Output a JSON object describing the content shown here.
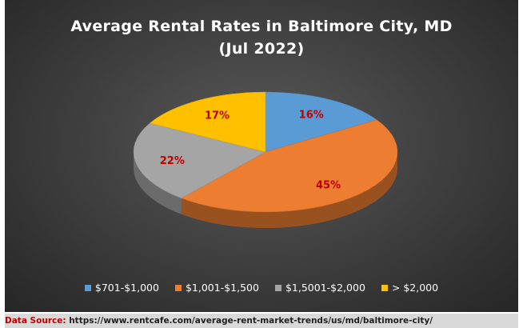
{
  "chart_data": {
    "type": "pie",
    "title": "Average Rental Rates in Baltimore City, MD",
    "subtitle": "(Jul 2022)",
    "categories": [
      "$701-$1,000",
      "$1,001-$1,500",
      "$1,5001-$2,000",
      "> $2,000"
    ],
    "values": [
      16,
      45,
      22,
      17
    ],
    "data_labels": [
      "16%",
      "45%",
      "22%",
      "17%"
    ],
    "colors": [
      "#5b9bd5",
      "#ed7d31",
      "#a5a5a5",
      "#ffc000"
    ],
    "label_color": "#c00000",
    "legend_position": "bottom",
    "style": "3d"
  },
  "source": {
    "label": "Data Source:",
    "url": "https://www.rentcafe.com/average-rent-market-trends/us/md/baltimore-city/"
  }
}
